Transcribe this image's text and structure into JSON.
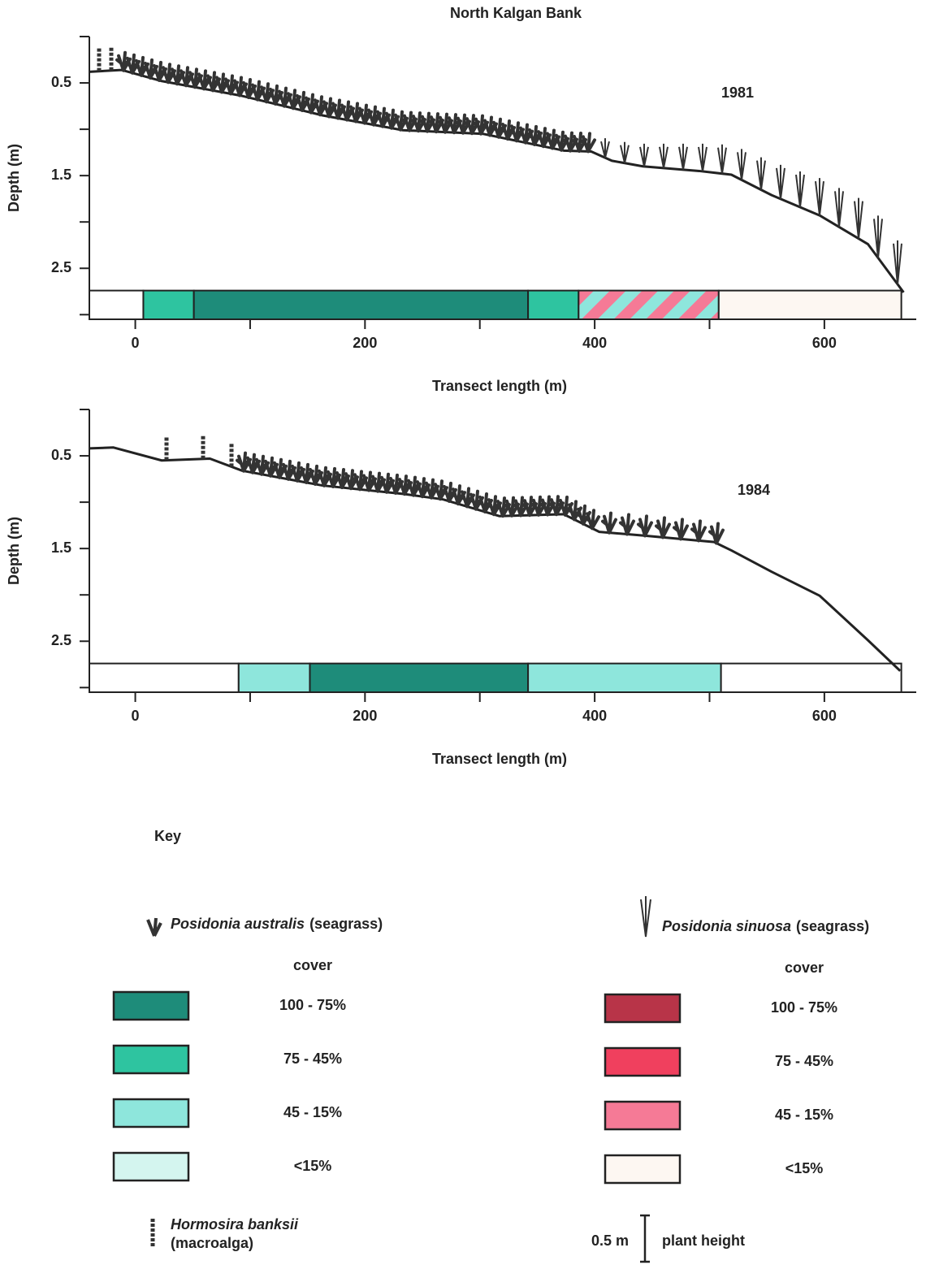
{
  "title": "North Kalgan Bank",
  "chart_data": [
    {
      "type": "profile",
      "annotation": "1981",
      "ylabel": "Depth (m)",
      "xlabel": "Transect length (m)",
      "xlim": [
        -40,
        680
      ],
      "ylim": [
        0,
        3.05
      ],
      "xticks": [
        0,
        200,
        400,
        600
      ],
      "xminorticks": [
        100,
        300,
        500
      ],
      "yticks": [
        0.5,
        1.5,
        2.5
      ],
      "yminorticks": [
        0,
        1,
        2,
        3
      ],
      "profile": {
        "x": [
          -40,
          -12,
          23,
          93,
          163,
          233,
          303,
          373,
          397,
          415,
          442,
          491,
          519,
          554,
          596,
          638,
          669
        ],
        "depth": [
          0.38,
          0.36,
          0.48,
          0.64,
          0.85,
          1.01,
          1.05,
          1.23,
          1.24,
          1.34,
          1.4,
          1.45,
          1.49,
          1.71,
          1.93,
          2.24,
          2.76
        ]
      },
      "segments": [
        {
          "start": -40,
          "end": 7,
          "color": "#ffffff"
        },
        {
          "start": 7,
          "end": 51,
          "color": "#2ec4a0"
        },
        {
          "start": 51,
          "end": 342,
          "color": "#1e8c7a"
        },
        {
          "start": 342,
          "end": 386,
          "color": "#2ec4a0"
        },
        {
          "start": 386,
          "end": 508,
          "colors": [
            "#f57a96",
            "#8ee6dc"
          ]
        },
        {
          "start": 508,
          "end": 667,
          "color": "#fdf7f2"
        }
      ]
    },
    {
      "type": "profile",
      "annotation": "1984",
      "ylabel": "Depth (m)",
      "xlabel": "Transect length (m)",
      "xlim": [
        -40,
        680
      ],
      "ylim": [
        0,
        3.05
      ],
      "xticks": [
        0,
        200,
        400,
        600
      ],
      "xminorticks": [
        100,
        300,
        500
      ],
      "yticks": [
        0.5,
        1.5,
        2.5
      ],
      "yminorticks": [
        0,
        1,
        2,
        3
      ],
      "profile": {
        "x": [
          -40,
          -19,
          23,
          65,
          93,
          163,
          233,
          268,
          317,
          373,
          404,
          442,
          504,
          519,
          554,
          596,
          638,
          666
        ],
        "depth": [
          0.42,
          0.41,
          0.55,
          0.53,
          0.66,
          0.82,
          0.91,
          0.97,
          1.15,
          1.13,
          1.32,
          1.36,
          1.43,
          1.52,
          1.75,
          2.01,
          2.49,
          2.82
        ]
      },
      "segments": [
        {
          "start": -40,
          "end": 90,
          "color": "#ffffff"
        },
        {
          "start": 90,
          "end": 152,
          "color": "#8ee6dc"
        },
        {
          "start": 152,
          "end": 342,
          "color": "#1e8c7a"
        },
        {
          "start": 342,
          "end": 510,
          "color": "#8ee6dc"
        },
        {
          "start": 510,
          "end": 667,
          "color": "#ffffff"
        }
      ]
    }
  ],
  "key": {
    "title": "Key",
    "columns": [
      {
        "species": "Posidonia australis",
        "note": "(seagrass)",
        "cover_title": "cover",
        "swatches": [
          {
            "label": "100  -  75%",
            "color": "#1e8c7a"
          },
          {
            "label": "75  -  45%",
            "color": "#2ec4a0"
          },
          {
            "label": "45  -  15%",
            "color": "#8ee6dc"
          },
          {
            "label": "<15%",
            "color": "#d4f5ef"
          }
        ]
      },
      {
        "species": "Posidonia sinuosa",
        "note": "(seagrass)",
        "cover_title": "cover",
        "swatches": [
          {
            "label": "100  -  75%",
            "color": "#b83448"
          },
          {
            "label": "75  -  45%",
            "color": "#f0405e"
          },
          {
            "label": "45  -  15%",
            "color": "#f57a96"
          },
          {
            "label": "<15%",
            "color": "#fdf7f2"
          }
        ]
      }
    ],
    "macroalga": {
      "species": "Hormosira banksii",
      "note": "(macroalga)"
    },
    "scale": {
      "label": "0.5 m",
      "note": "plant height"
    }
  }
}
